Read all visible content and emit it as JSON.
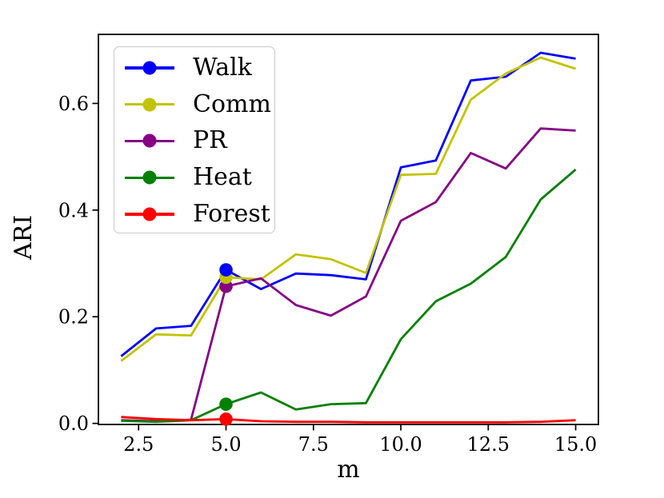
{
  "chart_data": {
    "type": "line",
    "title": "",
    "xlabel": "m",
    "ylabel": "ARI",
    "x": [
      2,
      3,
      4,
      5,
      6,
      7,
      8,
      9,
      10,
      11,
      12,
      13,
      14,
      15
    ],
    "series": [
      {
        "name": "Walk",
        "color": "#0000ff",
        "marker_at_x": 5,
        "values": [
          0.126,
          0.178,
          0.183,
          0.288,
          0.252,
          0.281,
          0.278,
          0.27,
          0.48,
          0.493,
          0.643,
          0.65,
          0.695,
          0.684
        ]
      },
      {
        "name": "Comm",
        "color": "#c3c300",
        "marker_at_x": 5,
        "values": [
          0.117,
          0.167,
          0.165,
          0.274,
          0.27,
          0.317,
          0.308,
          0.282,
          0.466,
          0.468,
          0.607,
          0.656,
          0.686,
          0.665
        ]
      },
      {
        "name": "PR",
        "color": "#850085",
        "marker_at_x": 5,
        "values": [
          0.006,
          0.004,
          0.007,
          0.257,
          0.272,
          0.222,
          0.202,
          0.238,
          0.38,
          0.415,
          0.507,
          0.478,
          0.553,
          0.549
        ]
      },
      {
        "name": "Heat",
        "color": "#008000",
        "marker_at_x": 5,
        "values": [
          0.005,
          0.003,
          0.006,
          0.036,
          0.058,
          0.026,
          0.036,
          0.038,
          0.158,
          0.229,
          0.262,
          0.312,
          0.42,
          0.476
        ]
      },
      {
        "name": "Forest",
        "color": "#ff0000",
        "marker_at_x": 5,
        "values": [
          0.012,
          0.008,
          0.006,
          0.008,
          0.004,
          0.003,
          0.003,
          0.002,
          0.002,
          0.002,
          0.002,
          0.002,
          0.003,
          0.006
        ]
      }
    ],
    "xticks": [
      "2.5",
      "5.0",
      "7.5",
      "10.0",
      "12.5",
      "15.0"
    ],
    "yticks": [
      "0.0",
      "0.2",
      "0.4",
      "0.6"
    ],
    "xlim": [
      1.35,
      15.65
    ],
    "ylim": [
      -0.002,
      0.7295
    ],
    "grid": false,
    "legend_position": "upper left",
    "marker_shape": "circle"
  }
}
